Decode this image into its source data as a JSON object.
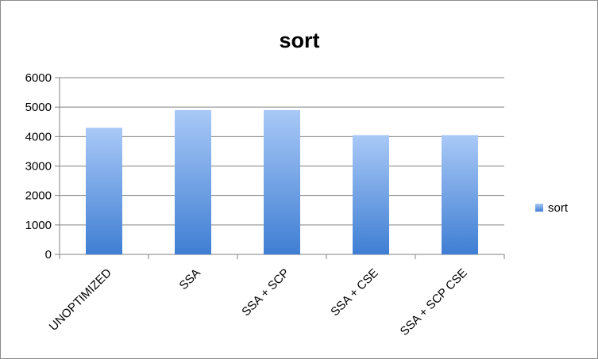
{
  "chart_data": {
    "type": "bar",
    "title": "sort",
    "categories": [
      "UNOPTIMIZED",
      "SSA",
      "SSA + SCP",
      "SSA + CSE",
      "SSA + SCP CSE"
    ],
    "series": [
      {
        "name": "sort",
        "values": [
          4300,
          4900,
          4900,
          4050,
          4050
        ]
      }
    ],
    "xlabel": "",
    "ylabel": "",
    "ylim": [
      0,
      6000
    ],
    "yticks": [
      0,
      1000,
      2000,
      3000,
      4000,
      5000,
      6000
    ],
    "grid": true,
    "legend_position": "right",
    "colors": {
      "bar_top": "#a9c9f7",
      "bar_bottom": "#3f7ed3",
      "grid": "#808080"
    }
  }
}
